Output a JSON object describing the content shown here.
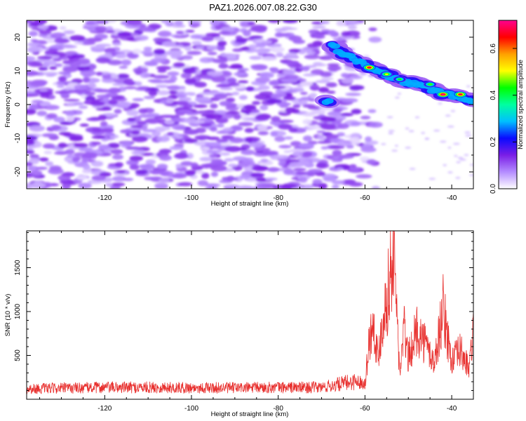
{
  "figure_title": "PAZ1.2026.007.08.22.G30",
  "chart_data": [
    {
      "type": "heatmap",
      "title": "PAZ1.2026.007.08.22.G30",
      "xlabel": "Height of straight line (km)",
      "ylabel": "Frequency (Hz)",
      "xlim": [
        -138,
        -35
      ],
      "ylim": [
        -25,
        25
      ],
      "xticks": [
        -120,
        -100,
        -80,
        -60,
        -40
      ],
      "yticks": [
        -20,
        -10,
        0,
        10,
        20
      ],
      "colorbar": {
        "label": "Normalized spectral amplitude",
        "range": [
          0.0,
          0.72
        ],
        "ticks": [
          0.0,
          0.2,
          0.4,
          0.6
        ],
        "colormap": "rainbow",
        "stops": [
          "#ffffff",
          "#b48cff",
          "#7a1ee6",
          "#0a0aff",
          "#00c0ff",
          "#00ffa0",
          "#00ff00",
          "#ffff00",
          "#ffa000",
          "#ff0000",
          "#ff0090"
        ]
      },
      "ridge": [
        {
          "x": -68,
          "f": 18
        },
        {
          "x": -65,
          "f": 15
        },
        {
          "x": -59,
          "f": 11
        },
        {
          "x": -55,
          "f": 9
        },
        {
          "x": -52,
          "f": 7
        },
        {
          "x": -47,
          "f": 6
        },
        {
          "x": -42,
          "f": 3
        },
        {
          "x": -38,
          "f": 2.5
        },
        {
          "x": -35,
          "f": 1
        }
      ],
      "ridge_peaks": [
        {
          "x": -59,
          "f": 11,
          "amp": 0.68
        },
        {
          "x": -55,
          "f": 9,
          "amp": 0.5
        },
        {
          "x": -52,
          "f": 7.5,
          "amp": 0.42
        },
        {
          "x": -45,
          "f": 6,
          "amp": 0.45
        },
        {
          "x": -42,
          "f": 3,
          "amp": 0.72
        },
        {
          "x": -38,
          "f": 3,
          "amp": 0.68
        }
      ],
      "background_amplitude": [
        0.05,
        0.15
      ]
    },
    {
      "type": "line",
      "xlabel": "Height of straight line (km)",
      "ylabel": "SNR (10 * v/v)",
      "xlim": [
        -138,
        -35
      ],
      "ylim": [
        0,
        1920
      ],
      "xticks": [
        -120,
        -100,
        -80,
        -60,
        -40
      ],
      "yticks": [
        500,
        1000,
        1500
      ],
      "color": "#e8312f",
      "series": [
        {
          "name": "SNR",
          "x": [
            -138,
            -130,
            -120,
            -110,
            -100,
            -90,
            -80,
            -70,
            -65,
            -62,
            -60,
            -59,
            -58,
            -57,
            -56,
            -55,
            -54,
            -53.5,
            -53,
            -52,
            -51,
            -50,
            -48,
            -46,
            -44,
            -42,
            -41,
            -40,
            -38,
            -36,
            -35
          ],
          "y": [
            130,
            140,
            150,
            150,
            145,
            145,
            150,
            150,
            200,
            230,
            200,
            750,
            1000,
            500,
            1000,
            1250,
            1650,
            1880,
            1550,
            300,
            900,
            520,
            880,
            700,
            450,
            1150,
            800,
            480,
            620,
            380,
            850
          ]
        }
      ]
    }
  ]
}
